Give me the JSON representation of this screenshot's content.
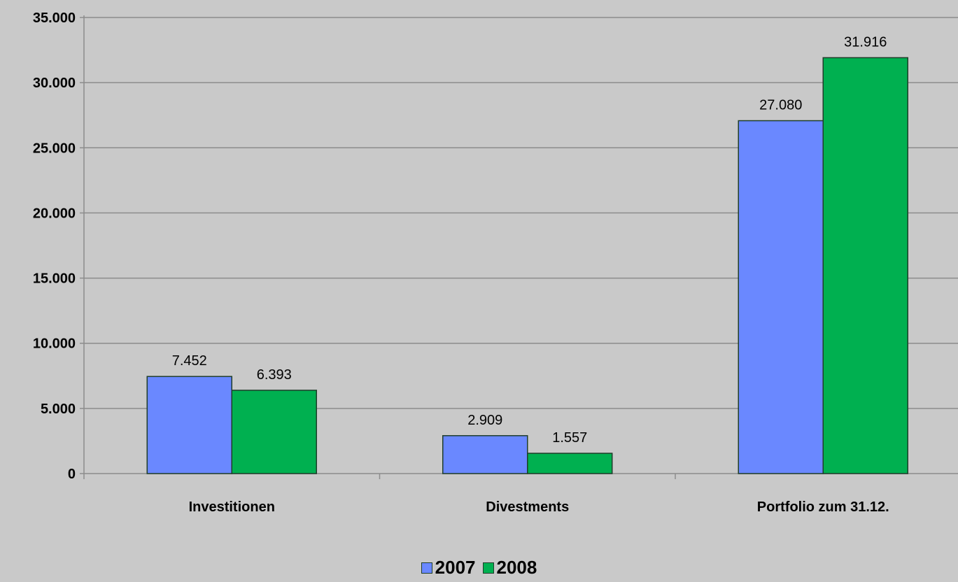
{
  "chart_data": {
    "type": "bar",
    "title": "",
    "xlabel": "",
    "ylabel": "",
    "categories": [
      "Investitionen",
      "Divestments",
      "Portfolio zum 31.12."
    ],
    "series": [
      {
        "name": "2007",
        "color": "#6a88ff",
        "values": [
          7452,
          2909,
          27080
        ],
        "labels": [
          "7.452",
          "2.909",
          "27.080"
        ]
      },
      {
        "name": "2008",
        "color": "#00b050",
        "values": [
          6393,
          1557,
          31916
        ],
        "labels": [
          "6.393",
          "1.557",
          "31.916"
        ]
      }
    ],
    "ylim": [
      0,
      35000
    ],
    "yticks": [
      0,
      5000,
      10000,
      15000,
      20000,
      25000,
      30000,
      35000
    ],
    "ytick_labels": [
      "0",
      "5.000",
      "10.000",
      "15.000",
      "20.000",
      "25.000",
      "30.000",
      "35.000"
    ],
    "grid": true,
    "legend_position": "bottom",
    "background_color": "#c9c9c9",
    "gridline_color": "#8c8c8c",
    "bar_border_color": "#1f3d2a"
  }
}
